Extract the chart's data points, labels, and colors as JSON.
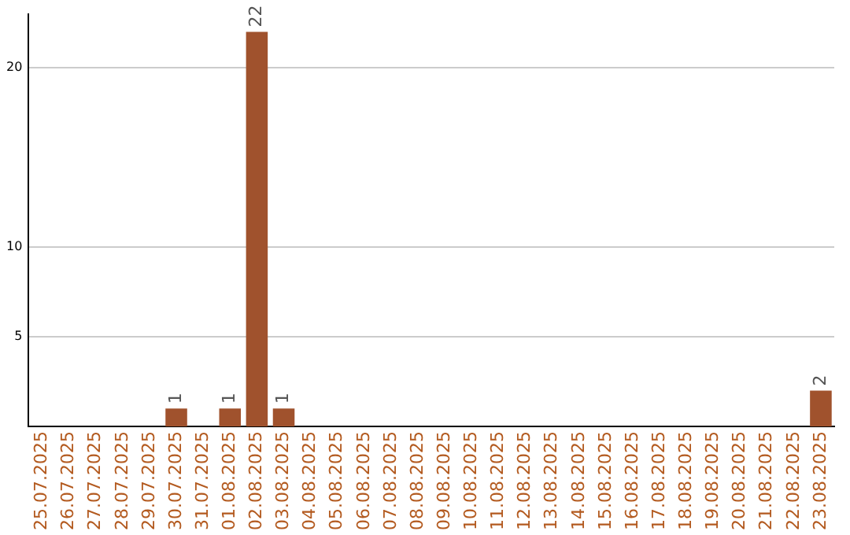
{
  "chart_data": {
    "type": "bar",
    "categories": [
      "25.07.2025",
      "26.07.2025",
      "27.07.2025",
      "28.07.2025",
      "29.07.2025",
      "30.07.2025",
      "31.07.2025",
      "01.08.2025",
      "02.08.2025",
      "03.08.2025",
      "04.08.2025",
      "05.08.2025",
      "06.08.2025",
      "07.08.2025",
      "08.08.2025",
      "09.08.2025",
      "10.08.2025",
      "11.08.2025",
      "12.08.2025",
      "13.08.2025",
      "14.08.2025",
      "15.08.2025",
      "16.08.2025",
      "17.08.2025",
      "18.08.2025",
      "19.08.2025",
      "20.08.2025",
      "21.08.2025",
      "22.08.2025",
      "23.08.2025"
    ],
    "values": [
      0,
      0,
      0,
      0,
      0,
      1,
      0,
      1,
      22,
      1,
      0,
      0,
      0,
      0,
      0,
      0,
      0,
      0,
      0,
      0,
      0,
      0,
      0,
      0,
      0,
      0,
      0,
      0,
      0,
      2
    ],
    "value_labels": [
      null,
      null,
      null,
      null,
      null,
      "1",
      null,
      "1",
      "22",
      "1",
      null,
      null,
      null,
      null,
      null,
      null,
      null,
      null,
      null,
      null,
      null,
      null,
      null,
      null,
      null,
      null,
      null,
      null,
      null,
      "2"
    ],
    "color": "#a0522d",
    "ylim": [
      0,
      23
    ],
    "yticks": [
      5,
      10,
      20
    ],
    "grid": "y",
    "legend": false
  }
}
